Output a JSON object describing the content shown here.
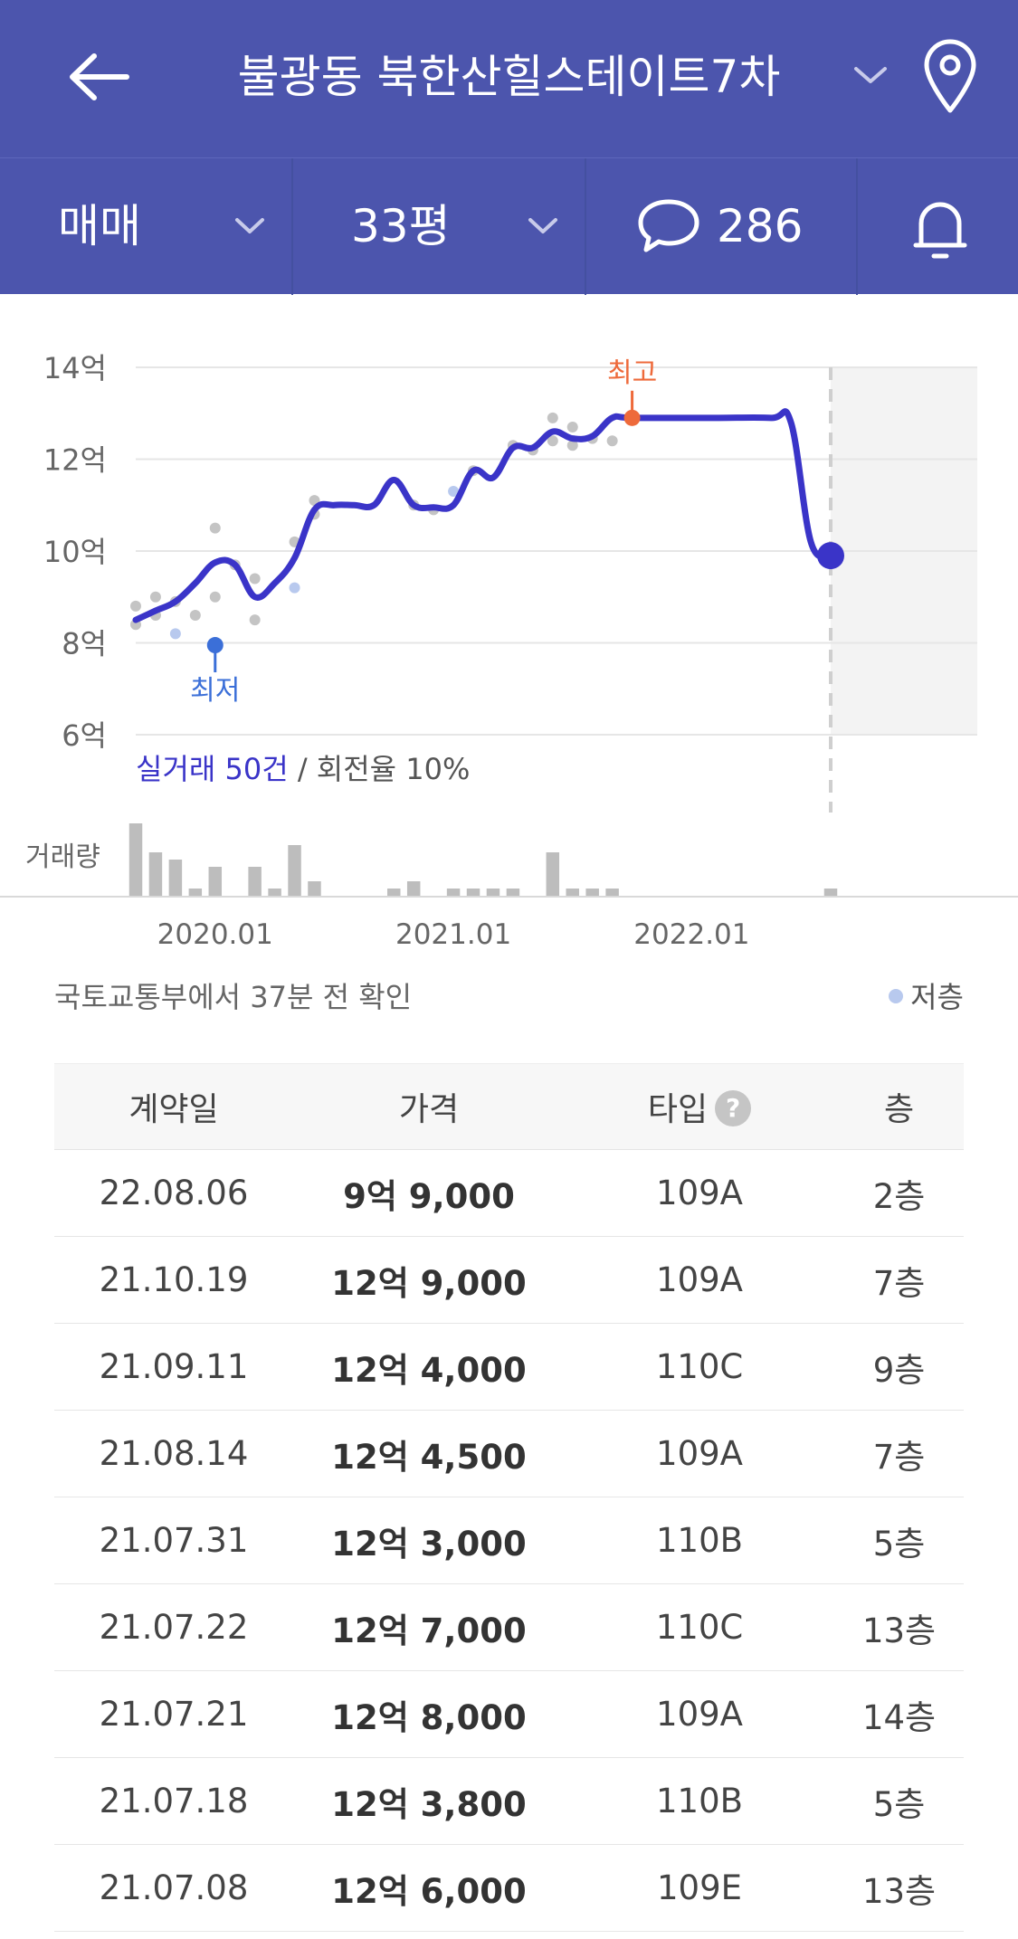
{
  "header": {
    "title": "불광동 북한산힐스테이트7차"
  },
  "filters": {
    "deal_type": "매매",
    "size": "33평",
    "comment_count": "286"
  },
  "colors": {
    "brand": "#4c55ad",
    "line": "#3a34c8",
    "max_marker": "#ee6a3b",
    "min_marker": "#3b6fd8",
    "dots": "#c4c4c4",
    "low_floor_dots": "#b8c9ee",
    "volume_bars": "#bdbdbd"
  },
  "chart_data": {
    "type": "line",
    "y_tick_labels": [
      "14억",
      "12억",
      "10억",
      "8억",
      "6억"
    ],
    "y_ticks": [
      14,
      12,
      10,
      8,
      6
    ],
    "ylim": [
      6,
      14
    ],
    "x_tick_labels": [
      "2020.01",
      "2021.01",
      "2022.01"
    ],
    "max_label": "최고",
    "min_label": "최저",
    "volume_label": "거래량",
    "summary_highlight": "실거래 50건",
    "summary_rest": " / 회전율 10%",
    "series": [
      {
        "points": [
          [
            "2019-09",
            8.5
          ],
          [
            "2019-10",
            8.7
          ],
          [
            "2019-11",
            8.9
          ],
          [
            "2019-12",
            9.3
          ],
          [
            "2020-01",
            9.75
          ],
          [
            "2020-02",
            9.7
          ],
          [
            "2020-03",
            9.0
          ],
          [
            "2020-04",
            9.3
          ],
          [
            "2020-05",
            9.85
          ],
          [
            "2020-06",
            10.9
          ],
          [
            "2020-07",
            11.0
          ],
          [
            "2020-08",
            11.0
          ],
          [
            "2020-09",
            11.0
          ],
          [
            "2020-10",
            11.55
          ],
          [
            "2020-11",
            11.0
          ],
          [
            "2020-12",
            10.95
          ],
          [
            "2021-01",
            11.0
          ],
          [
            "2021-02",
            11.75
          ],
          [
            "2021-03",
            11.6
          ],
          [
            "2021-04",
            12.25
          ],
          [
            "2021-05",
            12.25
          ],
          [
            "2021-06",
            12.6
          ],
          [
            "2021-07",
            12.45
          ],
          [
            "2021-08",
            12.5
          ],
          [
            "2021-09",
            12.9
          ],
          [
            "2021-10",
            12.9
          ],
          [
            "2022-02",
            12.9
          ],
          [
            "2022-05",
            12.9
          ],
          [
            "2022-06",
            12.8
          ],
          [
            "2022-07",
            10.2
          ],
          [
            "2022-08",
            9.9
          ]
        ]
      }
    ],
    "transactions": [
      [
        "2019-09",
        8.4,
        "normal"
      ],
      [
        "2019-09",
        8.8,
        "normal"
      ],
      [
        "2019-10",
        8.6,
        "normal"
      ],
      [
        "2019-10",
        9.0,
        "normal"
      ],
      [
        "2019-11",
        8.9,
        "normal"
      ],
      [
        "2019-11",
        8.2,
        "low"
      ],
      [
        "2019-12",
        8.6,
        "normal"
      ],
      [
        "2020-01",
        9.0,
        "normal"
      ],
      [
        "2020-01",
        10.5,
        "normal"
      ],
      [
        "2020-02",
        9.7,
        "normal"
      ],
      [
        "2020-03",
        8.5,
        "normal"
      ],
      [
        "2020-03",
        9.4,
        "normal"
      ],
      [
        "2020-05",
        10.2,
        "normal"
      ],
      [
        "2020-05",
        9.2,
        "low"
      ],
      [
        "2020-06",
        11.1,
        "normal"
      ],
      [
        "2020-06",
        10.8,
        "normal"
      ],
      [
        "2020-11",
        11.0,
        "normal"
      ],
      [
        "2020-12",
        10.9,
        "normal"
      ],
      [
        "2021-01",
        11.3,
        "low"
      ],
      [
        "2021-02",
        11.75,
        "normal"
      ],
      [
        "2021-04",
        12.3,
        "normal"
      ],
      [
        "2021-05",
        12.2,
        "normal"
      ],
      [
        "2021-06",
        12.4,
        "normal"
      ],
      [
        "2021-06",
        12.9,
        "normal"
      ],
      [
        "2021-07",
        12.7,
        "normal"
      ],
      [
        "2021-07",
        12.3,
        "normal"
      ],
      [
        "2021-08",
        12.45,
        "normal"
      ],
      [
        "2021-09",
        12.4,
        "normal"
      ],
      [
        "2021-10",
        12.9,
        "normal"
      ],
      [
        "2022-08",
        9.9,
        "low"
      ]
    ],
    "max_point": [
      "2021-10",
      12.9
    ],
    "min_point": [
      "2020-01",
      7.95
    ],
    "current_point": [
      "2022-08",
      9.9
    ],
    "volume": [
      [
        "2019-09",
        10
      ],
      [
        "2019-10",
        6
      ],
      [
        "2019-11",
        5
      ],
      [
        "2019-12",
        1
      ],
      [
        "2020-01",
        4
      ],
      [
        "2020-03",
        4
      ],
      [
        "2020-04",
        1
      ],
      [
        "2020-05",
        7
      ],
      [
        "2020-06",
        2
      ],
      [
        "2020-10",
        1
      ],
      [
        "2020-11",
        2
      ],
      [
        "2021-01",
        1
      ],
      [
        "2021-02",
        1
      ],
      [
        "2021-03",
        1
      ],
      [
        "2021-04",
        1
      ],
      [
        "2021-06",
        6
      ],
      [
        "2021-07",
        1
      ],
      [
        "2021-08",
        1
      ],
      [
        "2021-09",
        1
      ],
      [
        "2022-08",
        1
      ]
    ],
    "x_start": "2019-09",
    "x_end": "2022-08",
    "future_area": true
  },
  "sync_note": "국토교통부에서 37분 전 확인",
  "legend": {
    "low_floor": "저층"
  },
  "table": {
    "headers": [
      "계약일",
      "가격",
      "타입",
      "층"
    ],
    "rows": [
      [
        "22.08.06",
        "9억 9,000",
        "109A",
        "2층"
      ],
      [
        "21.10.19",
        "12억 9,000",
        "109A",
        "7층"
      ],
      [
        "21.09.11",
        "12억 4,000",
        "110C",
        "9층"
      ],
      [
        "21.08.14",
        "12억 4,500",
        "109A",
        "7층"
      ],
      [
        "21.07.31",
        "12억 3,000",
        "110B",
        "5층"
      ],
      [
        "21.07.22",
        "12억 7,000",
        "110C",
        "13층"
      ],
      [
        "21.07.21",
        "12억 8,000",
        "109A",
        "14층"
      ],
      [
        "21.07.18",
        "12억 3,800",
        "110B",
        "5층"
      ],
      [
        "21.07.08",
        "12억 6,000",
        "109E",
        "13층"
      ]
    ]
  }
}
